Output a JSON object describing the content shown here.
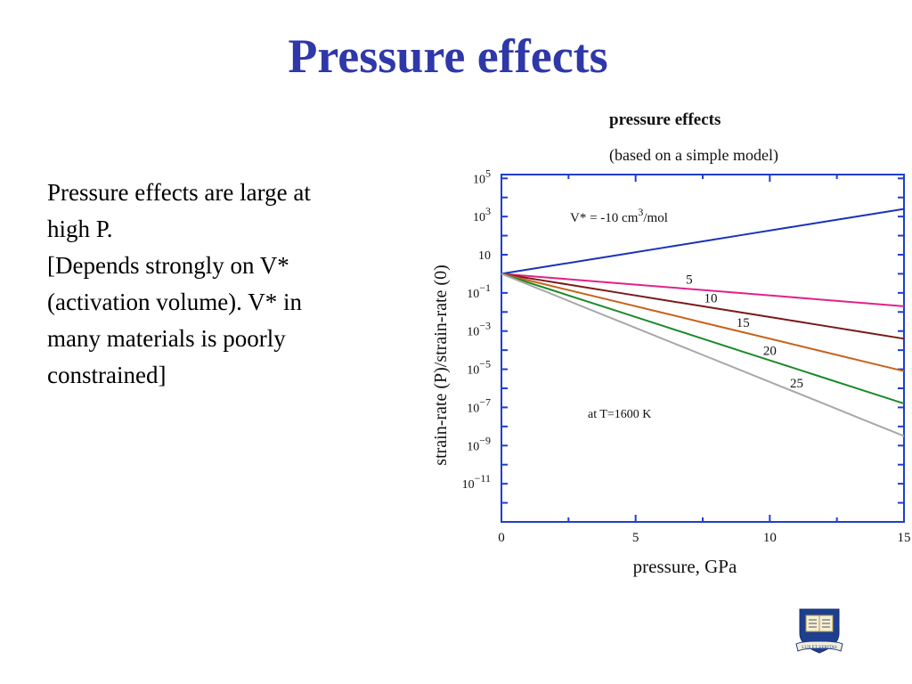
{
  "slide": {
    "title": "Pressure effects",
    "body_lines": [
      "Pressure effects are large at",
      "high P.",
      "[Depends strongly on V*",
      "(activation volume). V* in",
      "many materials is poorly",
      "constrained]"
    ],
    "logo_motto": "LUX ET VERITAS"
  },
  "colors": {
    "title": "#2f38a8",
    "axis": "#1f3fcc"
  },
  "chart_data": {
    "type": "line",
    "title": "pressure effects",
    "subtitle": "(based on a simple model)",
    "xlabel": "pressure, GPa",
    "ylabel": "strain-rate (P)/strain-rate (0)",
    "log_y": true,
    "xlim": [
      0,
      15
    ],
    "ylim_exponent": [
      -13,
      5.2
    ],
    "x_ticks": [
      0,
      5,
      10,
      15
    ],
    "y_tick_exponents": [
      5,
      3,
      1,
      -1,
      -3,
      -5,
      -7,
      -9,
      -11
    ],
    "y_tick_labels": [
      {
        "base": "10",
        "exp": "5"
      },
      {
        "base": "10",
        "exp": "3"
      },
      {
        "base": "10",
        "exp": ""
      },
      {
        "base": "10",
        "exp": "−1"
      },
      {
        "base": "10",
        "exp": "−3"
      },
      {
        "base": "10",
        "exp": "−5"
      },
      {
        "base": "10",
        "exp": "−7"
      },
      {
        "base": "10",
        "exp": "−9"
      },
      {
        "base": "10",
        "exp": "−11"
      }
    ],
    "annotations": {
      "v_label": {
        "text": "V* = -10 cm",
        "sup": "3",
        "tail": "/mol"
      },
      "temperature": "at T=1600 K"
    },
    "x": [
      0,
      1.5,
      3,
      4.5,
      6,
      7.5,
      9,
      10.5,
      12,
      13.5,
      15
    ],
    "series": [
      {
        "label": "-10",
        "color": "#1a33b8",
        "y_exponent": [
          0,
          0.34,
          0.68,
          1.02,
          1.36,
          1.7,
          2.04,
          2.38,
          2.72,
          3.06,
          3.4
        ]
      },
      {
        "label": "5",
        "color": "#e0238a",
        "y_exponent": [
          0,
          -0.17,
          -0.34,
          -0.51,
          -0.68,
          -0.85,
          -1.02,
          -1.19,
          -1.36,
          -1.53,
          -1.7
        ]
      },
      {
        "label": "10",
        "color": "#7a1a1a",
        "y_exponent": [
          0,
          -0.34,
          -0.68,
          -1.02,
          -1.36,
          -1.7,
          -2.04,
          -2.38,
          -2.72,
          -3.06,
          -3.4
        ]
      },
      {
        "label": "15",
        "color": "#c8621a",
        "y_exponent": [
          0,
          -0.51,
          -1.02,
          -1.53,
          -2.04,
          -2.55,
          -3.06,
          -3.57,
          -4.08,
          -4.59,
          -5.1
        ]
      },
      {
        "label": "20",
        "color": "#1c8a2a",
        "y_exponent": [
          0,
          -0.68,
          -1.36,
          -2.04,
          -2.72,
          -3.4,
          -4.08,
          -4.76,
          -5.44,
          -6.12,
          -6.8
        ]
      },
      {
        "label": "25",
        "color": "#a8a8a8",
        "y_exponent": [
          0,
          -0.85,
          -1.7,
          -2.55,
          -3.4,
          -4.25,
          -5.1,
          -5.95,
          -6.8,
          -7.65,
          -8.5
        ]
      }
    ]
  }
}
